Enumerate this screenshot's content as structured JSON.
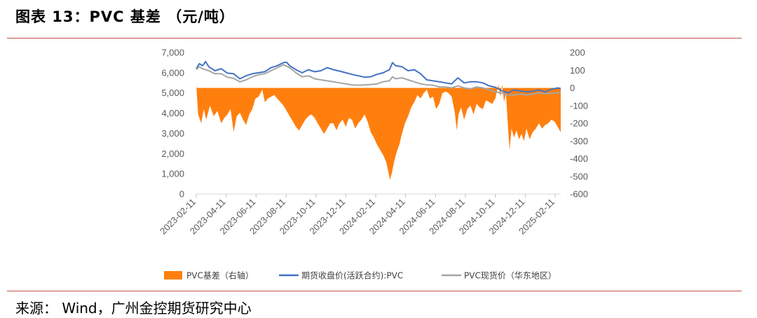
{
  "figure": {
    "title": "图表 13：PVC 基差 （元/吨）",
    "source": "来源： Wind，广州金控期货研究中心"
  },
  "chart_data": {
    "type": "line",
    "x_labels": [
      "2023-02-11",
      "2023-04-11",
      "2023-06-11",
      "2023-08-11",
      "2023-10-11",
      "2023-12-11",
      "2024-02-11",
      "2024-04-11",
      "2024-06-11",
      "2024-08-11",
      "2024-10-11",
      "2024-12-11",
      "2025-02-11"
    ],
    "left_axis": {
      "ticks": [
        "7,000",
        "6,000",
        "5,000",
        "4,000",
        "3,000",
        "2,000",
        "1,000",
        "0"
      ],
      "range": [
        0,
        7000
      ]
    },
    "right_axis": {
      "ticks": [
        "200",
        "100",
        "0",
        "-100",
        "-200",
        "-300",
        "-400",
        "-500",
        "-600"
      ],
      "range": [
        -600,
        200
      ]
    },
    "grid": false,
    "legend_position": "bottom",
    "series": [
      {
        "name": "PVC基差（右轴）",
        "type": "area",
        "axis": "right",
        "color": "#ff7f0e",
        "points": [
          [
            0,
            20
          ],
          [
            3,
            -150
          ],
          [
            8,
            -200
          ],
          [
            12,
            -120
          ],
          [
            16,
            -180
          ],
          [
            22,
            -100
          ],
          [
            28,
            -160
          ],
          [
            34,
            -130
          ],
          [
            40,
            -200
          ],
          [
            45,
            -170
          ],
          [
            50,
            -150
          ],
          [
            55,
            -120
          ],
          [
            60,
            -250
          ],
          [
            65,
            -160
          ],
          [
            70,
            -140
          ],
          [
            75,
            -180
          ],
          [
            80,
            -210
          ],
          [
            85,
            -150
          ],
          [
            90,
            -120
          ],
          [
            95,
            -60
          ],
          [
            100,
            -50
          ],
          [
            103,
            -30
          ],
          [
            106,
            -10
          ],
          [
            110,
            -80
          ],
          [
            115,
            -60
          ],
          [
            120,
            -50
          ],
          [
            125,
            -40
          ],
          [
            130,
            -60
          ],
          [
            135,
            -80
          ],
          [
            140,
            -100
          ],
          [
            145,
            -130
          ],
          [
            150,
            -160
          ],
          [
            155,
            -190
          ],
          [
            160,
            -220
          ],
          [
            165,
            -240
          ],
          [
            170,
            -210
          ],
          [
            175,
            -180
          ],
          [
            180,
            -160
          ],
          [
            185,
            -150
          ],
          [
            190,
            -170
          ],
          [
            195,
            -200
          ],
          [
            200,
            -230
          ],
          [
            205,
            -260
          ],
          [
            210,
            -230
          ],
          [
            215,
            -200
          ],
          [
            220,
            -200
          ],
          [
            225,
            -240
          ],
          [
            230,
            -200
          ],
          [
            235,
            -180
          ],
          [
            240,
            -220
          ],
          [
            245,
            -170
          ],
          [
            250,
            -180
          ],
          [
            255,
            -230
          ],
          [
            260,
            -200
          ],
          [
            265,
            -180
          ],
          [
            270,
            -150
          ],
          [
            275,
            -190
          ],
          [
            280,
            -250
          ],
          [
            285,
            -280
          ],
          [
            290,
            -320
          ],
          [
            295,
            -350
          ],
          [
            300,
            -380
          ],
          [
            305,
            -420
          ],
          [
            308,
            -470
          ],
          [
            311,
            -520
          ],
          [
            314,
            -480
          ],
          [
            318,
            -410
          ],
          [
            322,
            -360
          ],
          [
            326,
            -320
          ],
          [
            330,
            -260
          ],
          [
            335,
            -200
          ],
          [
            340,
            -160
          ],
          [
            345,
            -110
          ],
          [
            350,
            -80
          ],
          [
            355,
            -40
          ],
          [
            360,
            -60
          ],
          [
            365,
            -30
          ],
          [
            370,
            -10
          ],
          [
            375,
            -60
          ],
          [
            380,
            -50
          ],
          [
            385,
            -120
          ],
          [
            390,
            -90
          ],
          [
            395,
            -30
          ],
          [
            400,
            -20
          ],
          [
            405,
            -30
          ],
          [
            410,
            -50
          ],
          [
            415,
            -140
          ],
          [
            418,
            -240
          ],
          [
            421,
            -150
          ],
          [
            425,
            -110
          ],
          [
            430,
            -180
          ],
          [
            435,
            -120
          ],
          [
            440,
            -100
          ],
          [
            445,
            -150
          ],
          [
            450,
            -90
          ],
          [
            455,
            -110
          ],
          [
            460,
            -120
          ],
          [
            465,
            -70
          ],
          [
            470,
            -80
          ],
          [
            475,
            -90
          ],
          [
            480,
            -60
          ],
          [
            485,
            20
          ],
          [
            488,
            -50
          ],
          [
            491,
            20
          ],
          [
            494,
            -80
          ],
          [
            497,
            -30
          ],
          [
            500,
            -200
          ],
          [
            503,
            -350
          ],
          [
            506,
            -230
          ],
          [
            510,
            -280
          ],
          [
            514,
            -240
          ],
          [
            518,
            -290
          ],
          [
            522,
            -260
          ],
          [
            526,
            -300
          ],
          [
            530,
            -230
          ],
          [
            535,
            -290
          ],
          [
            540,
            -250
          ],
          [
            545,
            -230
          ],
          [
            550,
            -200
          ],
          [
            555,
            -230
          ],
          [
            560,
            -210
          ],
          [
            565,
            -200
          ],
          [
            570,
            -180
          ],
          [
            575,
            -190
          ],
          [
            580,
            -220
          ],
          [
            585,
            -250
          ]
        ]
      },
      {
        "name": "期货收盘价(活跃合约):PVC",
        "type": "line",
        "axis": "left",
        "color": "#4472c4",
        "points": [
          [
            0,
            6200
          ],
          [
            5,
            6450
          ],
          [
            10,
            6350
          ],
          [
            15,
            6550
          ],
          [
            20,
            6300
          ],
          [
            30,
            6100
          ],
          [
            40,
            6200
          ],
          [
            50,
            5980
          ],
          [
            60,
            5950
          ],
          [
            70,
            5700
          ],
          [
            80,
            5850
          ],
          [
            90,
            5950
          ],
          [
            100,
            6000
          ],
          [
            110,
            6050
          ],
          [
            120,
            6250
          ],
          [
            130,
            6350
          ],
          [
            140,
            6500
          ],
          [
            145,
            6520
          ],
          [
            150,
            6350
          ],
          [
            160,
            6150
          ],
          [
            170,
            6000
          ],
          [
            180,
            6150
          ],
          [
            190,
            6050
          ],
          [
            200,
            6100
          ],
          [
            210,
            6250
          ],
          [
            220,
            6150
          ],
          [
            230,
            6080
          ],
          [
            240,
            6000
          ],
          [
            250,
            5920
          ],
          [
            260,
            5850
          ],
          [
            270,
            5780
          ],
          [
            280,
            5800
          ],
          [
            290,
            5920
          ],
          [
            300,
            6000
          ],
          [
            310,
            6150
          ],
          [
            315,
            6500
          ],
          [
            320,
            6350
          ],
          [
            330,
            6300
          ],
          [
            340,
            6100
          ],
          [
            350,
            6150
          ],
          [
            360,
            5950
          ],
          [
            370,
            5650
          ],
          [
            380,
            5600
          ],
          [
            390,
            5550
          ],
          [
            400,
            5500
          ],
          [
            410,
            5450
          ],
          [
            420,
            5750
          ],
          [
            430,
            5500
          ],
          [
            440,
            5550
          ],
          [
            450,
            5550
          ],
          [
            460,
            5500
          ],
          [
            470,
            5350
          ],
          [
            480,
            5280
          ],
          [
            490,
            5120
          ],
          [
            500,
            5000
          ],
          [
            510,
            5150
          ],
          [
            520,
            5100
          ],
          [
            530,
            5050
          ],
          [
            540,
            5080
          ],
          [
            550,
            5150
          ],
          [
            560,
            5050
          ],
          [
            570,
            5180
          ],
          [
            580,
            5250
          ],
          [
            585,
            5220
          ]
        ]
      },
      {
        "name": "PVC现货价（华东地区）",
        "type": "line",
        "axis": "left",
        "color": "#a5a5a5",
        "points": [
          [
            0,
            6150
          ],
          [
            5,
            6300
          ],
          [
            10,
            6200
          ],
          [
            20,
            6100
          ],
          [
            30,
            5950
          ],
          [
            40,
            5950
          ],
          [
            50,
            5780
          ],
          [
            60,
            5720
          ],
          [
            70,
            5550
          ],
          [
            80,
            5650
          ],
          [
            90,
            5800
          ],
          [
            100,
            5900
          ],
          [
            110,
            5950
          ],
          [
            120,
            6100
          ],
          [
            130,
            6250
          ],
          [
            140,
            6400
          ],
          [
            150,
            6250
          ],
          [
            160,
            6000
          ],
          [
            170,
            5800
          ],
          [
            180,
            5850
          ],
          [
            190,
            5700
          ],
          [
            200,
            5650
          ],
          [
            210,
            5600
          ],
          [
            220,
            5550
          ],
          [
            230,
            5500
          ],
          [
            240,
            5450
          ],
          [
            250,
            5400
          ],
          [
            260,
            5380
          ],
          [
            270,
            5400
          ],
          [
            280,
            5420
          ],
          [
            290,
            5450
          ],
          [
            300,
            5550
          ],
          [
            310,
            5600
          ],
          [
            315,
            5800
          ],
          [
            320,
            5700
          ],
          [
            330,
            5750
          ],
          [
            340,
            5650
          ],
          [
            350,
            5550
          ],
          [
            360,
            5450
          ],
          [
            370,
            5400
          ],
          [
            380,
            5380
          ],
          [
            390,
            5300
          ],
          [
            400,
            5300
          ],
          [
            410,
            5250
          ],
          [
            420,
            5350
          ],
          [
            430,
            5250
          ],
          [
            440,
            5200
          ],
          [
            450,
            5300
          ],
          [
            460,
            5250
          ],
          [
            470,
            5150
          ],
          [
            480,
            5050
          ],
          [
            490,
            5000
          ],
          [
            500,
            4900
          ],
          [
            510,
            4900
          ],
          [
            520,
            4950
          ],
          [
            530,
            4900
          ],
          [
            540,
            4950
          ],
          [
            550,
            5000
          ],
          [
            560,
            4970
          ],
          [
            570,
            4980
          ],
          [
            580,
            5000
          ],
          [
            585,
            5020
          ]
        ]
      }
    ]
  }
}
